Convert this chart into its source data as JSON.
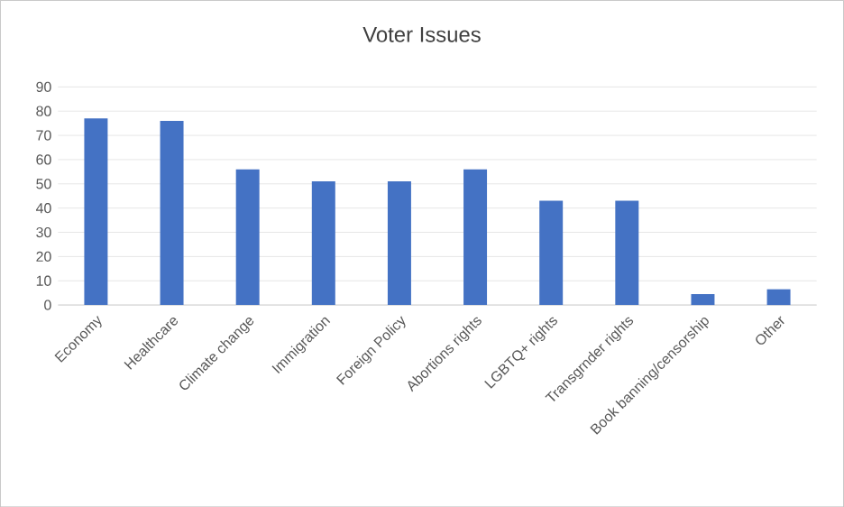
{
  "chart_data": {
    "type": "bar",
    "title": "Voter Issues",
    "categories": [
      "Economy",
      "Healthcare",
      "Climate change",
      "Immigration",
      "Foreign Policy",
      "Abortions rights",
      "LGBTQ+ rights",
      "Transgrnder rights",
      "Book banning/censorship",
      "Other"
    ],
    "values": [
      77,
      76,
      56,
      51,
      51,
      56,
      43,
      43,
      4.5,
      6.5
    ],
    "color": "#4472c4",
    "ylim": [
      0,
      90
    ],
    "yticks": [
      0,
      10,
      20,
      30,
      40,
      50,
      60,
      70,
      80,
      90
    ],
    "grid": "y"
  }
}
